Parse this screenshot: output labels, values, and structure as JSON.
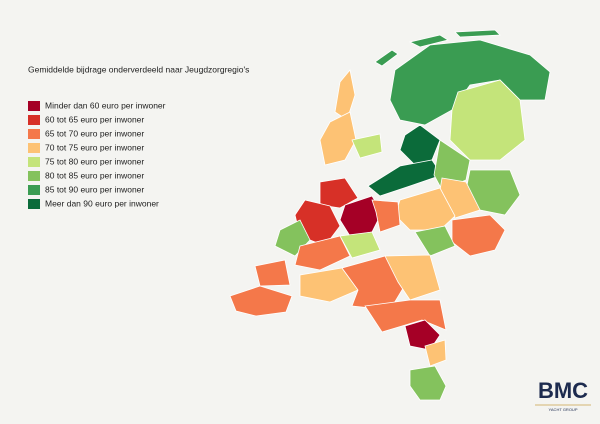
{
  "title": "Gemiddelde bijdrage onderverdeeld naar Jeugdzorgregio's",
  "legend": [
    {
      "label": "Minder dan 60 euro per inwoner",
      "color": "#a50026"
    },
    {
      "label": "60 tot 65 euro per inwoner",
      "color": "#d73027"
    },
    {
      "label": "65 tot 70 euro per inwoner",
      "color": "#f4784a"
    },
    {
      "label": "70 tot 75 euro per inwoner",
      "color": "#fdc274"
    },
    {
      "label": "75 tot 80 euro per inwoner",
      "color": "#c4e47a"
    },
    {
      "label": "80 tot 85 euro per inwoner",
      "color": "#84c25d"
    },
    {
      "label": "85 tot 90 euro per inwoner",
      "color": "#3a9c52"
    },
    {
      "label": "Meer dan 90 euro per inwoner",
      "color": "#0b6b3a"
    }
  ],
  "logo": {
    "name": "BMC",
    "tagline": "YACHT GROUP"
  }
}
